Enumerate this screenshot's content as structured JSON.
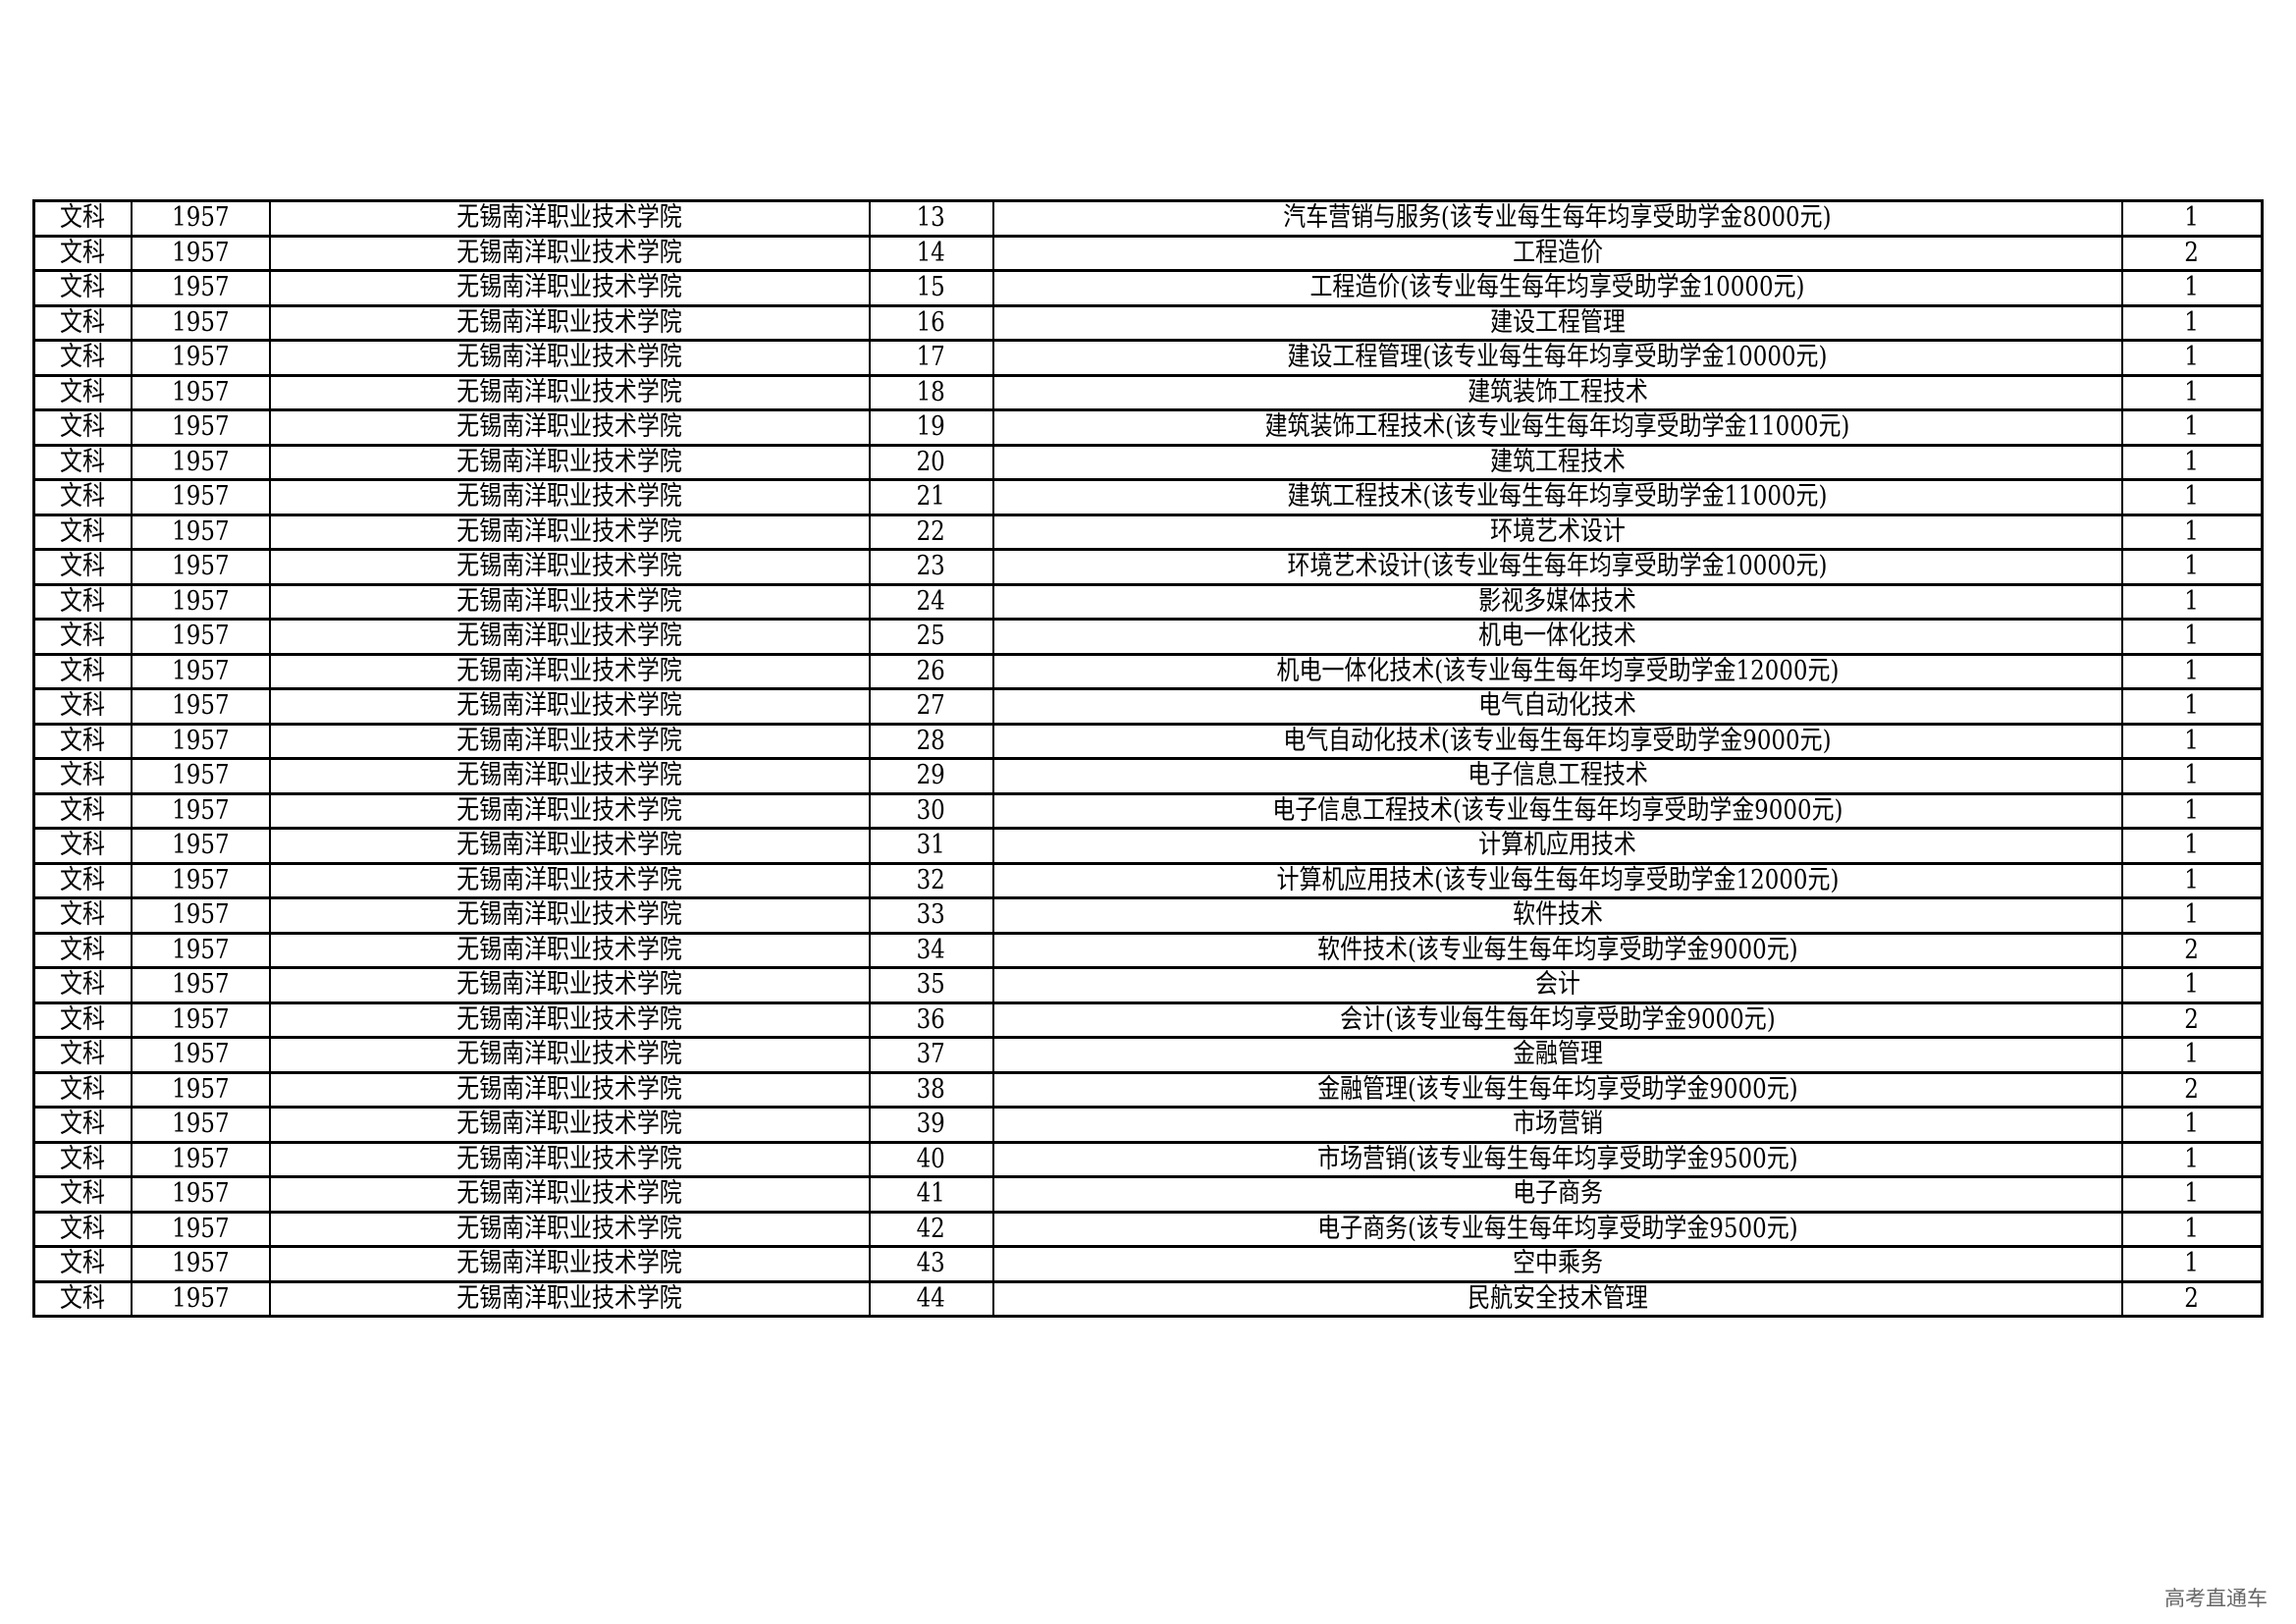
{
  "table": {
    "rows": [
      [
        "文科",
        "1957",
        "无锡南洋职业技术学院",
        "13",
        "汽车营销与服务(该专业每生每年均享受助学金8000元)",
        "1"
      ],
      [
        "文科",
        "1957",
        "无锡南洋职业技术学院",
        "14",
        "工程造价",
        "2"
      ],
      [
        "文科",
        "1957",
        "无锡南洋职业技术学院",
        "15",
        "工程造价(该专业每生每年均享受助学金10000元)",
        "1"
      ],
      [
        "文科",
        "1957",
        "无锡南洋职业技术学院",
        "16",
        "建设工程管理",
        "1"
      ],
      [
        "文科",
        "1957",
        "无锡南洋职业技术学院",
        "17",
        "建设工程管理(该专业每生每年均享受助学金10000元)",
        "1"
      ],
      [
        "文科",
        "1957",
        "无锡南洋职业技术学院",
        "18",
        "建筑装饰工程技术",
        "1"
      ],
      [
        "文科",
        "1957",
        "无锡南洋职业技术学院",
        "19",
        "建筑装饰工程技术(该专业每生每年均享受助学金11000元)",
        "1"
      ],
      [
        "文科",
        "1957",
        "无锡南洋职业技术学院",
        "20",
        "建筑工程技术",
        "1"
      ],
      [
        "文科",
        "1957",
        "无锡南洋职业技术学院",
        "21",
        "建筑工程技术(该专业每生每年均享受助学金11000元)",
        "1"
      ],
      [
        "文科",
        "1957",
        "无锡南洋职业技术学院",
        "22",
        "环境艺术设计",
        "1"
      ],
      [
        "文科",
        "1957",
        "无锡南洋职业技术学院",
        "23",
        "环境艺术设计(该专业每生每年均享受助学金10000元)",
        "1"
      ],
      [
        "文科",
        "1957",
        "无锡南洋职业技术学院",
        "24",
        "影视多媒体技术",
        "1"
      ],
      [
        "文科",
        "1957",
        "无锡南洋职业技术学院",
        "25",
        "机电一体化技术",
        "1"
      ],
      [
        "文科",
        "1957",
        "无锡南洋职业技术学院",
        "26",
        "机电一体化技术(该专业每生每年均享受助学金12000元)",
        "1"
      ],
      [
        "文科",
        "1957",
        "无锡南洋职业技术学院",
        "27",
        "电气自动化技术",
        "1"
      ],
      [
        "文科",
        "1957",
        "无锡南洋职业技术学院",
        "28",
        "电气自动化技术(该专业每生每年均享受助学金9000元)",
        "1"
      ],
      [
        "文科",
        "1957",
        "无锡南洋职业技术学院",
        "29",
        "电子信息工程技术",
        "1"
      ],
      [
        "文科",
        "1957",
        "无锡南洋职业技术学院",
        "30",
        "电子信息工程技术(该专业每生每年均享受助学金9000元)",
        "1"
      ],
      [
        "文科",
        "1957",
        "无锡南洋职业技术学院",
        "31",
        "计算机应用技术",
        "1"
      ],
      [
        "文科",
        "1957",
        "无锡南洋职业技术学院",
        "32",
        "计算机应用技术(该专业每生每年均享受助学金12000元)",
        "1"
      ],
      [
        "文科",
        "1957",
        "无锡南洋职业技术学院",
        "33",
        "软件技术",
        "1"
      ],
      [
        "文科",
        "1957",
        "无锡南洋职业技术学院",
        "34",
        "软件技术(该专业每生每年均享受助学金9000元)",
        "2"
      ],
      [
        "文科",
        "1957",
        "无锡南洋职业技术学院",
        "35",
        "会计",
        "1"
      ],
      [
        "文科",
        "1957",
        "无锡南洋职业技术学院",
        "36",
        "会计(该专业每生每年均享受助学金9000元)",
        "2"
      ],
      [
        "文科",
        "1957",
        "无锡南洋职业技术学院",
        "37",
        "金融管理",
        "1"
      ],
      [
        "文科",
        "1957",
        "无锡南洋职业技术学院",
        "38",
        "金融管理(该专业每生每年均享受助学金9000元)",
        "2"
      ],
      [
        "文科",
        "1957",
        "无锡南洋职业技术学院",
        "39",
        "市场营销",
        "1"
      ],
      [
        "文科",
        "1957",
        "无锡南洋职业技术学院",
        "40",
        "市场营销(该专业每生每年均享受助学金9500元)",
        "1"
      ],
      [
        "文科",
        "1957",
        "无锡南洋职业技术学院",
        "41",
        "电子商务",
        "1"
      ],
      [
        "文科",
        "1957",
        "无锡南洋职业技术学院",
        "42",
        "电子商务(该专业每生每年均享受助学金9500元)",
        "1"
      ],
      [
        "文科",
        "1957",
        "无锡南洋职业技术学院",
        "43",
        "空中乘务",
        "1"
      ],
      [
        "文科",
        "1957",
        "无锡南洋职业技术学院",
        "44",
        "民航安全技术管理",
        "2"
      ]
    ]
  },
  "watermark": "高考直通车"
}
